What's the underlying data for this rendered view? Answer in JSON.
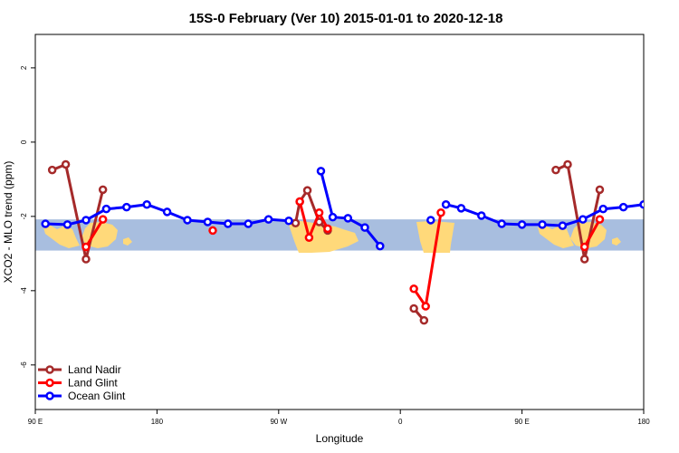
{
  "chart_data": {
    "type": "line",
    "title": "15S-0 February (Ver 10)   2015-01-01 to 2020-12-18",
    "xlabel": "Longitude",
    "ylabel": "XCO2 - MLO trend (ppm)",
    "xlim": [
      90,
      450
    ],
    "ylim": [
      -7.2,
      2.9
    ],
    "x_ticks": [
      {
        "value": 90,
        "label": "90 E"
      },
      {
        "value": 162,
        "label": "180"
      },
      {
        "value": 234,
        "label": "90 W"
      },
      {
        "value": 306,
        "label": "0"
      },
      {
        "value": 378,
        "label": "90 E"
      },
      {
        "value": 450,
        "label": "180"
      }
    ],
    "y_ticks": [
      2,
      0,
      -2,
      -4,
      -6
    ],
    "land_band": {
      "y_min": -2.92,
      "y_max": -2.08,
      "ocean_color": "#a8bedf",
      "land_color": "#ffd97a"
    },
    "legend_position": "bottom-left",
    "series": [
      {
        "name": "Land Nadir",
        "color": "#a52a2a",
        "segments": [
          [
            [
              100,
              -0.75
            ],
            [
              108,
              -0.6
            ],
            [
              120,
              -3.15
            ],
            [
              130,
              -1.28
            ]
          ],
          [
            [
              244,
              -2.18
            ],
            [
              246.5,
              -1.6
            ],
            [
              251,
              -1.3
            ],
            [
              258,
              -2.15
            ],
            [
              263,
              -2.38
            ]
          ],
          [
            [
              314,
              -4.48
            ],
            [
              320,
              -4.8
            ]
          ],
          [
            [
              398,
              -0.75
            ],
            [
              405,
              -0.6
            ],
            [
              415,
              -3.15
            ],
            [
              424,
              -1.28
            ]
          ]
        ]
      },
      {
        "name": "Land Glint",
        "color": "#ff0000",
        "segments": [
          [
            [
              120,
              -2.82
            ],
            [
              130,
              -2.08
            ]
          ],
          [
            [
              246.5,
              -1.6
            ],
            [
              252,
              -2.57
            ],
            [
              258,
              -1.9
            ],
            [
              263,
              -2.33
            ]
          ],
          [
            [
              195,
              -2.38
            ]
          ],
          [
            [
              314,
              -3.95
            ],
            [
              321,
              -4.42
            ],
            [
              330,
              -1.9
            ]
          ],
          [
            [
              415,
              -2.82
            ],
            [
              424,
              -2.08
            ]
          ]
        ]
      },
      {
        "name": "Ocean Glint",
        "color": "#0000ff",
        "segments": [
          [
            [
              96,
              -2.2
            ],
            [
              109,
              -2.22
            ],
            [
              120,
              -2.1
            ],
            [
              132,
              -1.8
            ],
            [
              144,
              -1.75
            ],
            [
              156,
              -1.68
            ],
            [
              168,
              -1.88
            ],
            [
              180,
              -2.1
            ],
            [
              192,
              -2.15
            ],
            [
              204,
              -2.2
            ],
            [
              216,
              -2.2
            ],
            [
              228,
              -2.08
            ],
            [
              240,
              -2.12
            ]
          ],
          [
            [
              259,
              -0.78
            ],
            [
              266,
              -2.02
            ],
            [
              275,
              -2.05
            ],
            [
              285,
              -2.3
            ],
            [
              294,
              -2.8
            ]
          ],
          [
            [
              324,
              -2.1
            ]
          ],
          [
            [
              333,
              -1.68
            ],
            [
              342,
              -1.78
            ],
            [
              354,
              -1.98
            ],
            [
              366,
              -2.2
            ],
            [
              378,
              -2.22
            ],
            [
              390,
              -2.22
            ],
            [
              402,
              -2.25
            ],
            [
              414,
              -2.08
            ],
            [
              426,
              -1.8
            ],
            [
              438,
              -1.75
            ],
            [
              450,
              -1.68
            ]
          ]
        ]
      }
    ]
  }
}
